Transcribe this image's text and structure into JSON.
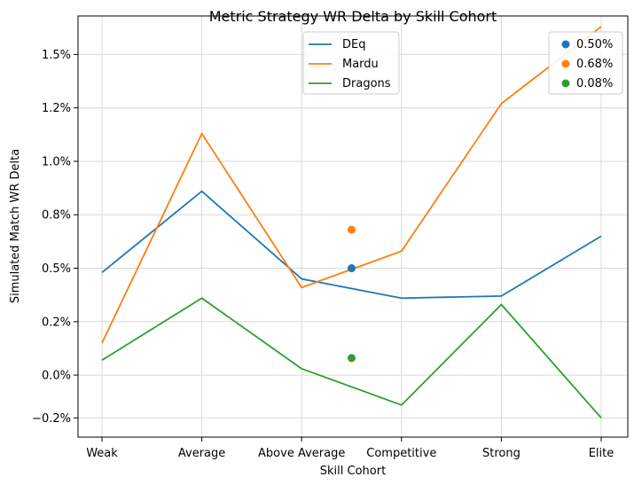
{
  "chart_data": {
    "type": "line",
    "title": "Metric Strategy WR Delta by Skill Cohort",
    "xlabel": "Skill Cohort",
    "ylabel": "Simulated Match WR Delta",
    "categories": [
      "Weak",
      "Average",
      "Above Average",
      "Competitive",
      "Strong",
      "Elite"
    ],
    "ylim": [
      -0.0029,
      0.0168
    ],
    "yticks": [
      -0.002,
      0.0,
      0.0025,
      0.005,
      0.0075,
      0.01,
      0.0125,
      0.015
    ],
    "ytick_labels": [
      "−0.2%",
      "0.0%",
      "0.2%",
      "0.5%",
      "0.8%",
      "1.0%",
      "1.2%",
      "1.5%"
    ],
    "grid": true,
    "series": [
      {
        "name": "DEq",
        "color": "#1f77b4",
        "values": [
          0.0048,
          0.0086,
          0.0045,
          0.0036,
          0.0037,
          0.0065
        ]
      },
      {
        "name": "Mardu",
        "color": "#ff7f0e",
        "values": [
          0.0015,
          0.0113,
          0.0041,
          0.0058,
          0.0127,
          0.0163
        ]
      },
      {
        "name": "Dragons",
        "color": "#2ca02c",
        "values": [
          0.0007,
          0.0036,
          0.0003,
          -0.0014,
          0.0033,
          -0.002
        ]
      }
    ],
    "points": [
      {
        "label": "0.50%",
        "color": "#1f77b4",
        "x": 2.5,
        "y": 0.005
      },
      {
        "label": "0.68%",
        "color": "#ff7f0e",
        "x": 2.5,
        "y": 0.0068
      },
      {
        "label": "0.08%",
        "color": "#2ca02c",
        "x": 2.5,
        "y": 0.0008
      }
    ],
    "legend_lines_position": "top-center",
    "legend_points_position": "top-right"
  }
}
